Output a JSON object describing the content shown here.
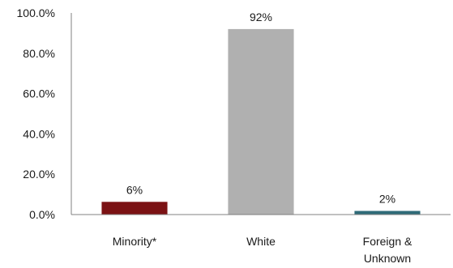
{
  "chart_data": {
    "type": "bar",
    "categories": [
      [
        "Minority*"
      ],
      [
        "White"
      ],
      [
        "Foreign &",
        "Unknown"
      ]
    ],
    "values": [
      6.3,
      92.0,
      1.8
    ],
    "data_labels": [
      "6%",
      "92%",
      "2%"
    ],
    "colors": [
      "#7b1214",
      "#b0b0b0",
      "#2f6b78"
    ],
    "yticks": [
      "0.0%",
      "20.0%",
      "40.0%",
      "60.0%",
      "80.0%",
      "100.0%"
    ],
    "ylim": [
      0,
      100
    ],
    "grid": false,
    "legend": "none"
  }
}
